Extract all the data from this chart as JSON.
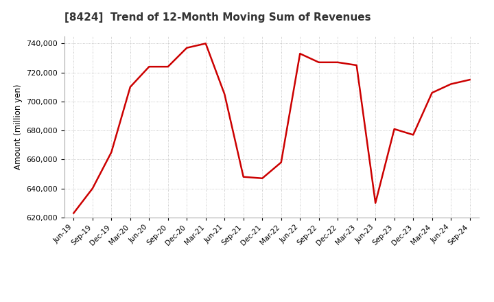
{
  "title": "[8424]  Trend of 12-Month Moving Sum of Revenues",
  "ylabel": "Amount (million yen)",
  "line_color": "#cc0000",
  "line_width": 1.8,
  "background_color": "#ffffff",
  "grid_color": "#999999",
  "ylim": [
    620000,
    745000
  ],
  "yticks": [
    620000,
    640000,
    660000,
    680000,
    700000,
    720000,
    740000
  ],
  "labels": [
    "Jun-19",
    "Sep-19",
    "Dec-19",
    "Mar-20",
    "Jun-20",
    "Sep-20",
    "Dec-20",
    "Mar-21",
    "Jun-21",
    "Sep-21",
    "Dec-21",
    "Mar-22",
    "Jun-22",
    "Sep-22",
    "Dec-22",
    "Mar-23",
    "Jun-23",
    "Sep-23",
    "Dec-23",
    "Mar-24",
    "Jun-24",
    "Sep-24"
  ],
  "values": [
    623000,
    640000,
    665000,
    710000,
    724000,
    724000,
    737000,
    740000,
    705000,
    648000,
    647000,
    658000,
    733000,
    727000,
    727000,
    725000,
    630000,
    681000,
    677000,
    706000,
    712000,
    715000
  ]
}
